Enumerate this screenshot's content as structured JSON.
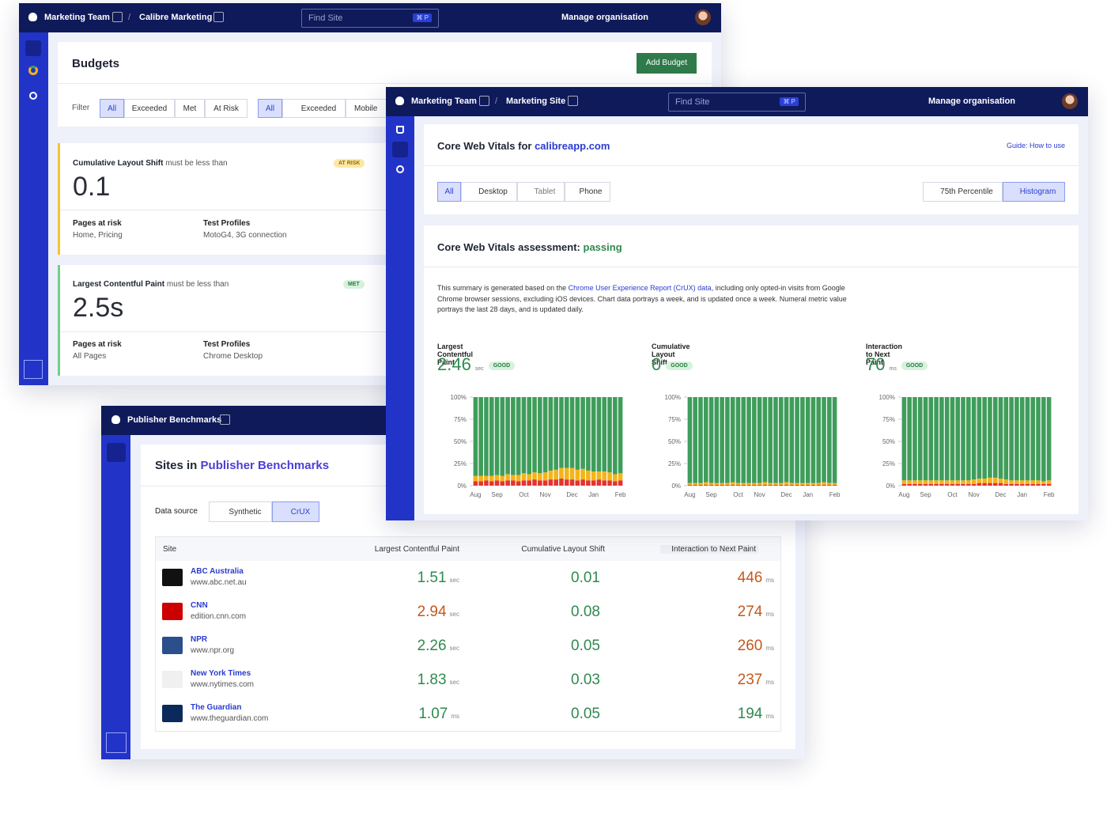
{
  "budgets_window": {
    "nav": {
      "team": "Marketing Team",
      "site": "Calibre Marketing",
      "search": "Find Site",
      "shortcut": "⌘ P",
      "manage": "Manage organisation"
    },
    "title": "Budgets",
    "add_button": "Add Budget",
    "filter_label": "Filter",
    "status_filters": [
      "All",
      "Exceeded",
      "Met",
      "At Risk"
    ],
    "device_filters": [
      "All",
      "Exceeded",
      "Mobile"
    ],
    "budgets": [
      {
        "metric": "Cumulative Layout Shift",
        "condition": "must be less than",
        "status": "AT RISK",
        "value": "0.1",
        "pages_label": "Pages at risk",
        "pages": "Home, Pricing",
        "profiles_label": "Test Profiles",
        "profiles": "MotoG4, 3G connection"
      },
      {
        "metric": "Largest Contentful Paint",
        "condition": "must be less than",
        "status": "MET",
        "value": "2.5s",
        "pages_label": "Pages at risk",
        "pages": "All Pages",
        "profiles_label": "Test Profiles",
        "profiles": "Chrome Desktop"
      }
    ]
  },
  "vitals_window": {
    "nav": {
      "team": "Marketing Team",
      "site": "Marketing Site",
      "search": "Find Site",
      "shortcut": "⌘ P",
      "manage": "Manage organisation"
    },
    "title": "Core Web Vitals for",
    "site_link": "calibreapp.com",
    "guide": "Guide: How to use",
    "devices": [
      "All",
      "Desktop",
      "Tablet",
      "Phone"
    ],
    "views": [
      "75th Percentile",
      "Histogram"
    ],
    "assessment": "Core Web Vitals assessment:",
    "assessment_result": "passing",
    "summary": {
      "before": "This summary is generated based on the",
      "link": "Chrome User Experience Report (CrUX) data",
      "after": ", including only opted-in visits from Google Chrome browser sessions, excluding iOS devices. Chart data portrays a week, and is updated once a week. Numeral metric value portrays the last 28 days, and is updated daily."
    }
  },
  "chart_data": [
    {
      "type": "bar",
      "stacked": true,
      "title": "Largest Contentful Paint",
      "metric": "2.46",
      "unit": "sec",
      "rating": "GOOD",
      "categories": [
        "Aug",
        null,
        null,
        null,
        "Sep",
        null,
        null,
        null,
        null,
        "Oct",
        null,
        null,
        null,
        "Nov",
        null,
        null,
        null,
        null,
        "Dec",
        null,
        null,
        null,
        "Jan",
        null,
        null,
        null,
        null,
        "Feb"
      ],
      "series": [
        {
          "color": "#e3342f",
          "values": [
            5,
            5,
            6,
            5,
            6,
            5,
            6,
            6,
            5,
            6,
            6,
            7,
            6,
            6,
            7,
            7,
            8,
            7,
            7,
            6,
            7,
            6,
            6,
            7,
            6,
            6,
            5,
            6
          ]
        },
        {
          "color": "#f4b41a",
          "values": [
            6,
            6,
            5,
            6,
            6,
            6,
            7,
            6,
            7,
            8,
            7,
            8,
            8,
            9,
            10,
            11,
            12,
            13,
            13,
            12,
            12,
            11,
            10,
            9,
            10,
            9,
            8,
            8
          ]
        },
        {
          "color": "#3f9d5b",
          "values": [
            89,
            89,
            89,
            89,
            88,
            89,
            87,
            88,
            88,
            86,
            87,
            85,
            86,
            85,
            83,
            82,
            80,
            80,
            80,
            82,
            81,
            83,
            84,
            84,
            84,
            85,
            87,
            86
          ]
        }
      ],
      "ylim": [
        0,
        100
      ],
      "yticks": [
        {
          "value": 0,
          "label": "0%"
        },
        {
          "value": 25,
          "label": "25%"
        },
        {
          "value": 50,
          "label": "50%"
        },
        {
          "value": 75,
          "label": "75%"
        },
        {
          "value": 100,
          "label": "100%"
        }
      ]
    },
    {
      "type": "bar",
      "stacked": true,
      "title": "Cumulative Layout Shift",
      "metric": "0",
      "unit": "",
      "rating": "GOOD",
      "categories": [
        "Aug",
        null,
        null,
        null,
        "Sep",
        null,
        null,
        null,
        null,
        "Oct",
        null,
        null,
        null,
        "Nov",
        null,
        null,
        null,
        null,
        "Dec",
        null,
        null,
        null,
        "Jan",
        null,
        null,
        null,
        null,
        "Feb"
      ],
      "series": [
        {
          "color": "#e3342f",
          "values": [
            1,
            1,
            1,
            1,
            1,
            1,
            1,
            1,
            1,
            1,
            1,
            1,
            1,
            1,
            1,
            1,
            1,
            1,
            1,
            1,
            1,
            1,
            1,
            1,
            1,
            1,
            1,
            1
          ]
        },
        {
          "color": "#f4b41a",
          "values": [
            2,
            2,
            2,
            3,
            2,
            2,
            2,
            2,
            3,
            2,
            2,
            2,
            2,
            2,
            3,
            2,
            2,
            2,
            3,
            2,
            2,
            2,
            2,
            2,
            2,
            3,
            2,
            2
          ]
        },
        {
          "color": "#3f9d5b",
          "values": [
            97,
            97,
            97,
            96,
            97,
            97,
            97,
            97,
            96,
            97,
            97,
            97,
            97,
            97,
            96,
            97,
            97,
            97,
            96,
            97,
            97,
            97,
            97,
            97,
            97,
            96,
            97,
            97
          ]
        }
      ],
      "ylim": [
        0,
        100
      ],
      "yticks": [
        {
          "value": 0,
          "label": "0%"
        },
        {
          "value": 25,
          "label": "25%"
        },
        {
          "value": 50,
          "label": "50%"
        },
        {
          "value": 75,
          "label": "75%"
        },
        {
          "value": 100,
          "label": "100%"
        }
      ]
    },
    {
      "type": "bar",
      "stacked": true,
      "title": "Interaction to Next Paint",
      "metric": "70",
      "unit": "ms",
      "rating": "GOOD",
      "categories": [
        "Aug",
        null,
        null,
        null,
        "Sep",
        null,
        null,
        null,
        null,
        "Oct",
        null,
        null,
        null,
        "Nov",
        null,
        null,
        null,
        null,
        "Dec",
        null,
        null,
        null,
        "Jan",
        null,
        null,
        null,
        null,
        "Feb"
      ],
      "series": [
        {
          "color": "#e3342f",
          "values": [
            2,
            2,
            2,
            2,
            2,
            2,
            2,
            2,
            2,
            2,
            2,
            2,
            2,
            2,
            3,
            3,
            3,
            3,
            3,
            2,
            2,
            2,
            2,
            2,
            2,
            2,
            2,
            2
          ]
        },
        {
          "color": "#f4b41a",
          "values": [
            4,
            4,
            4,
            4,
            4,
            4,
            4,
            4,
            4,
            4,
            4,
            4,
            4,
            5,
            5,
            5,
            6,
            6,
            5,
            5,
            4,
            4,
            4,
            4,
            4,
            4,
            3,
            4
          ]
        },
        {
          "color": "#3f9d5b",
          "values": [
            94,
            94,
            94,
            94,
            94,
            94,
            94,
            94,
            94,
            94,
            94,
            94,
            94,
            93,
            92,
            92,
            91,
            91,
            92,
            93,
            94,
            94,
            94,
            94,
            94,
            94,
            95,
            94
          ]
        }
      ],
      "ylim": [
        0,
        100
      ],
      "yticks": [
        {
          "value": 0,
          "label": "0%"
        },
        {
          "value": 25,
          "label": "25%"
        },
        {
          "value": 50,
          "label": "50%"
        },
        {
          "value": 75,
          "label": "75%"
        },
        {
          "value": 100,
          "label": "100%"
        }
      ]
    }
  ],
  "publisher_window": {
    "nav": {
      "team": "Publisher Benchmarks"
    },
    "title": "Sites in",
    "collection": "Publisher Benchmarks",
    "data_source_label": "Data source",
    "sources": [
      "Synthetic",
      "CrUX"
    ],
    "columns": [
      "Site",
      "Largest Contentful Paint",
      "Cumulative Layout Shift",
      "Interaction to Next Paint"
    ],
    "rows": [
      {
        "name": "ABC Australia",
        "url": "www.abc.net.au",
        "lcp": "1.51",
        "lcp_unit": "sec",
        "lcp_color": "#2f8a4f",
        "cls": "0.01",
        "cls_color": "#2f8a4f",
        "inp": "446",
        "inp_unit": "ms",
        "inp_color": "#c4581c"
      },
      {
        "name": "CNN",
        "url": "edition.cnn.com",
        "lcp": "2.94",
        "lcp_unit": "sec",
        "lcp_color": "#c4581c",
        "cls": "0.08",
        "cls_color": "#2f8a4f",
        "inp": "274",
        "inp_unit": "ms",
        "inp_color": "#c4581c"
      },
      {
        "name": "NPR",
        "url": "www.npr.org",
        "lcp": "2.26",
        "lcp_unit": "sec",
        "lcp_color": "#2f8a4f",
        "cls": "0.05",
        "cls_color": "#2f8a4f",
        "inp": "260",
        "inp_unit": "ms",
        "inp_color": "#c4581c"
      },
      {
        "name": "New York Times",
        "url": "www.nytimes.com",
        "lcp": "1.83",
        "lcp_unit": "sec",
        "lcp_color": "#2f8a4f",
        "cls": "0.03",
        "cls_color": "#2f8a4f",
        "inp": "237",
        "inp_unit": "ms",
        "inp_color": "#c4581c"
      },
      {
        "name": "The Guardian",
        "url": "www.theguardian.com",
        "lcp": "1.07",
        "lcp_unit": "ms",
        "lcp_color": "#2f8a4f",
        "cls": "0.05",
        "cls_color": "#2f8a4f",
        "inp": "194",
        "inp_unit": "ms",
        "inp_color": "#2f8a4f"
      }
    ]
  }
}
